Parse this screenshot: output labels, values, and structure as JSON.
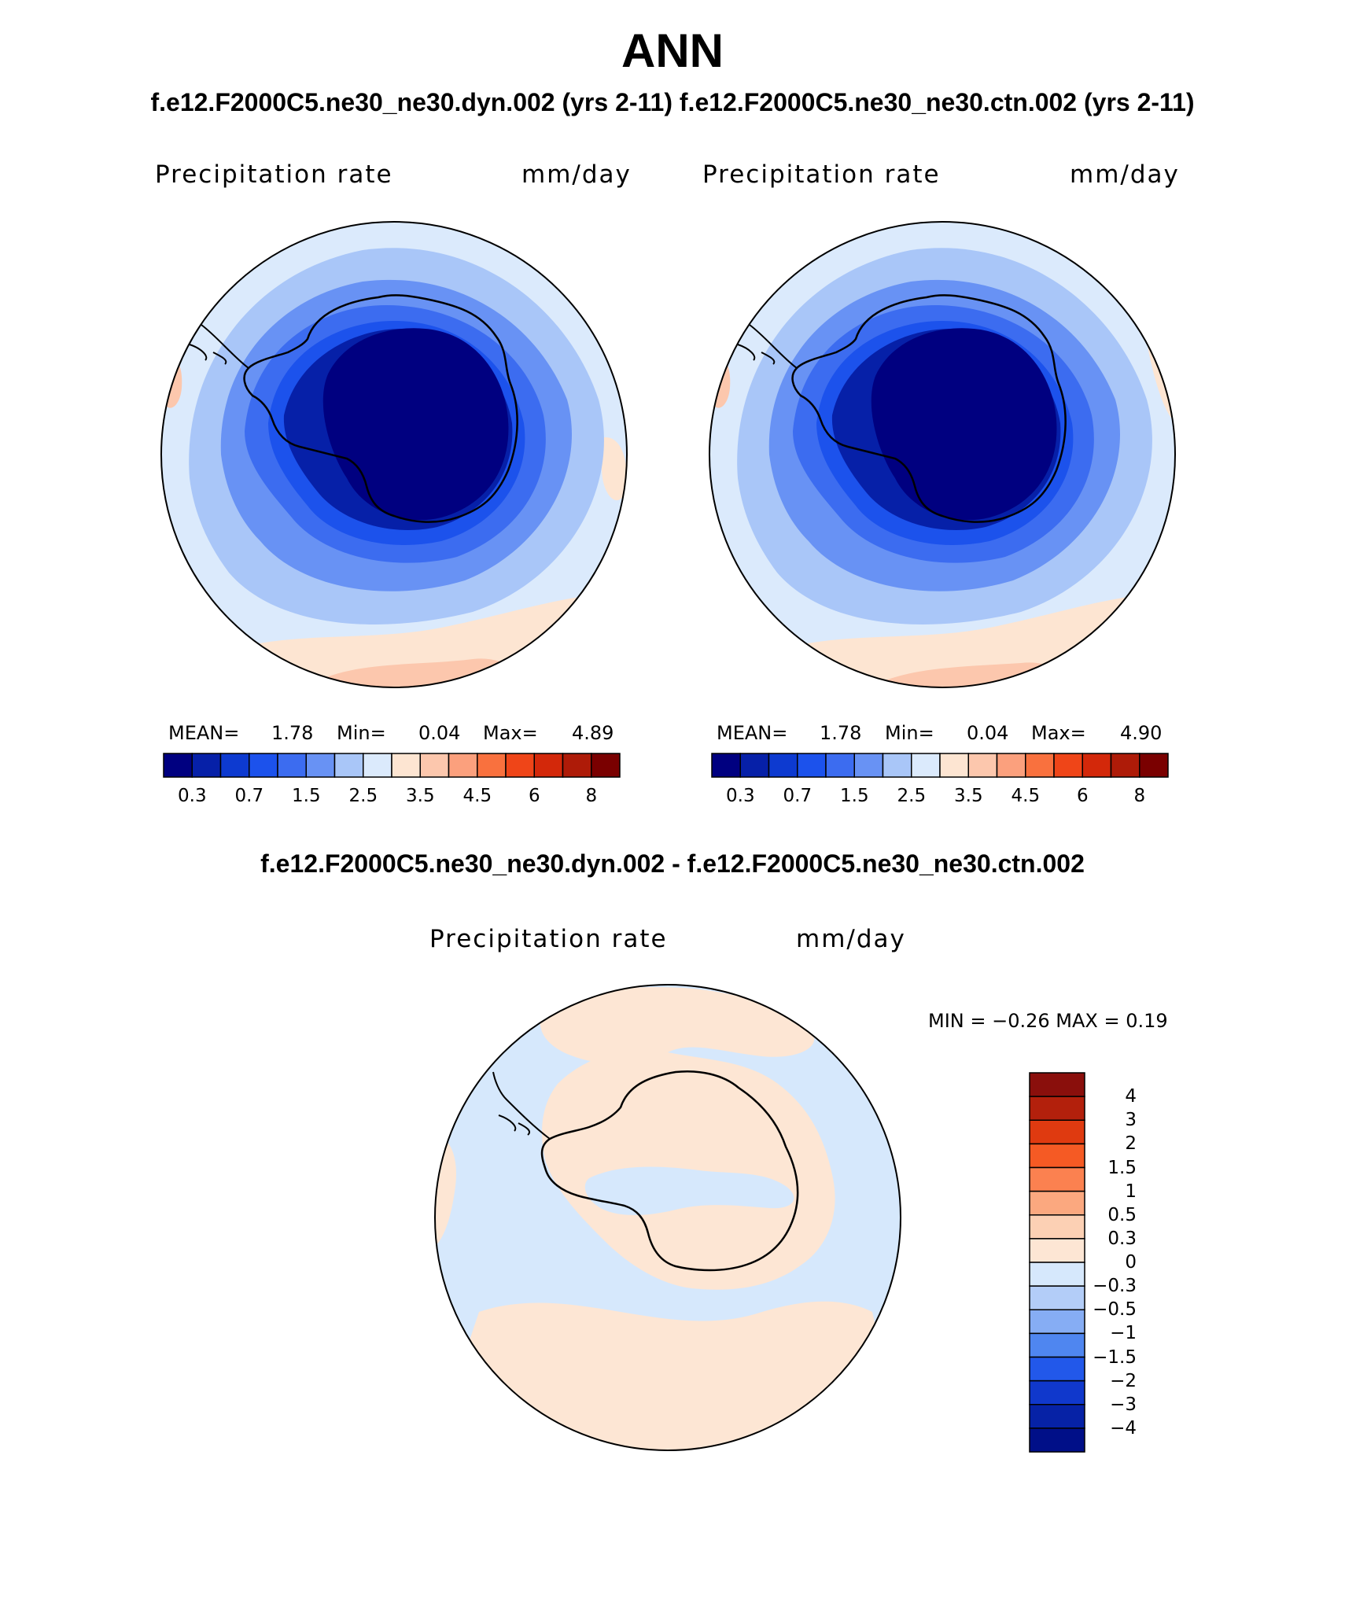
{
  "header": {
    "title": "ANN",
    "subtitle": "f.e12.F2000C5.ne30_ne30.dyn.002 (yrs 2-11)  f.e12.F2000C5.ne30_ne30.ctn.002 (yrs 2-11)"
  },
  "panels": [
    {
      "variable": "Precipitation rate",
      "units": "mm/day",
      "stats": {
        "mean_label": "MEAN=",
        "mean": "1.78",
        "min_label": "Min=",
        "min": "0.04",
        "max_label": "Max=",
        "max": "4.89"
      }
    },
    {
      "variable": "Precipitation rate",
      "units": "mm/day",
      "stats": {
        "mean_label": "MEAN=",
        "mean": "1.78",
        "min_label": "Min=",
        "min": "0.04",
        "max_label": "Max=",
        "max": "4.90"
      }
    }
  ],
  "main_colorbar": {
    "colors": [
      "#000080",
      "#0620a8",
      "#0d3ad0",
      "#1c52ec",
      "#3c6cf0",
      "#6892f4",
      "#a9c6f8",
      "#dbeafc",
      "#fde5d2",
      "#fcc7ad",
      "#fba07d",
      "#f9713e",
      "#ef4518",
      "#d3280a",
      "#ae1b08",
      "#7a0000"
    ],
    "tick_labels": [
      "0.3",
      "0.7",
      "1.5",
      "2.5",
      "3.5",
      "4.5",
      "6",
      "8"
    ]
  },
  "difference": {
    "title": "f.e12.F2000C5.ne30_ne30.dyn.002 - f.e12.F2000C5.ne30_ne30.ctn.002",
    "variable": "Precipitation rate",
    "units": "mm/day",
    "stats": "MIN =   −0.26  MAX =     0.19",
    "colorbar": {
      "colors_top_to_bottom": [
        "#8a0f0c",
        "#b3200c",
        "#df3a10",
        "#f55a24",
        "#fb8150",
        "#fba87f",
        "#fcd0b4",
        "#fde6d4",
        "#d6e8fc",
        "#b3cdf8",
        "#86adf4",
        "#4f86f0",
        "#2258ea",
        "#1038cc",
        "#0622a6",
        "#000f88"
      ],
      "labels": [
        "4",
        "3",
        "2",
        "1.5",
        "1",
        "0.5",
        "0.3",
        "0",
        "−0.3",
        "−0.5",
        "−1",
        "−1.5",
        "−2",
        "−3",
        "−4"
      ]
    },
    "region_colors": {
      "positive": "#fde6d4",
      "negative": "#d6e8fc"
    }
  }
}
